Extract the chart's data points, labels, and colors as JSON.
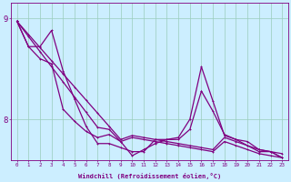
{
  "xlabel": "Windchill (Refroidissement éolien,°C)",
  "background_color": "#cceeff",
  "line_color": "#800080",
  "grid_color": "#99ccbb",
  "axis_color": "#800080",
  "ylim": [
    7.6,
    9.15
  ],
  "xlim": [
    -0.5,
    23.5
  ],
  "yticks": [
    8,
    9
  ],
  "xticks": [
    0,
    1,
    2,
    3,
    4,
    5,
    6,
    7,
    8,
    9,
    10,
    11,
    12,
    13,
    14,
    15,
    16,
    17,
    18,
    19,
    20,
    21,
    22,
    23
  ],
  "series1_x": [
    0,
    1,
    2,
    3,
    4,
    5,
    6,
    7,
    8,
    9,
    10,
    11,
    12,
    13,
    14,
    15,
    16,
    17,
    18,
    19,
    20,
    21,
    22,
    23
  ],
  "series1_y": [
    8.97,
    8.84,
    8.71,
    8.58,
    8.45,
    8.32,
    8.19,
    8.06,
    7.93,
    7.8,
    7.84,
    7.82,
    7.8,
    7.78,
    7.76,
    7.74,
    7.72,
    7.7,
    7.82,
    7.78,
    7.74,
    7.7,
    7.68,
    7.66
  ],
  "series2_x": [
    0,
    1,
    2,
    3,
    4,
    5,
    6,
    7,
    8,
    9,
    10,
    11,
    12,
    13,
    14,
    15,
    16,
    17,
    18,
    19,
    20,
    21,
    22,
    23
  ],
  "series2_y": [
    8.97,
    8.82,
    8.67,
    8.52,
    8.37,
    8.22,
    8.07,
    7.92,
    7.9,
    7.78,
    7.82,
    7.8,
    7.78,
    7.76,
    7.74,
    7.72,
    7.7,
    7.68,
    7.78,
    7.74,
    7.7,
    7.66,
    7.64,
    7.62
  ],
  "series3_x": [
    0,
    1,
    2,
    3,
    4,
    5,
    6,
    7,
    8,
    9,
    10,
    11,
    12,
    13,
    14,
    15,
    16,
    17,
    18,
    19,
    20,
    21,
    22,
    23
  ],
  "series3_y": [
    8.97,
    8.72,
    8.72,
    8.88,
    8.48,
    8.2,
    7.93,
    7.76,
    7.76,
    7.72,
    7.68,
    7.68,
    7.8,
    7.8,
    7.82,
    8.0,
    8.52,
    8.18,
    7.84,
    7.8,
    7.74,
    7.68,
    7.68,
    7.62
  ],
  "series4_x": [
    0,
    1,
    2,
    3,
    4,
    5,
    6,
    7,
    8,
    9,
    10,
    11,
    12,
    13,
    14,
    15,
    16,
    17,
    18,
    19,
    20,
    21,
    22,
    23
  ],
  "series4_y": [
    8.97,
    8.72,
    8.6,
    8.55,
    8.1,
    7.98,
    7.88,
    7.82,
    7.85,
    7.78,
    7.64,
    7.7,
    7.76,
    7.8,
    7.8,
    7.9,
    8.28,
    8.08,
    7.85,
    7.8,
    7.78,
    7.7,
    7.68,
    7.62
  ]
}
